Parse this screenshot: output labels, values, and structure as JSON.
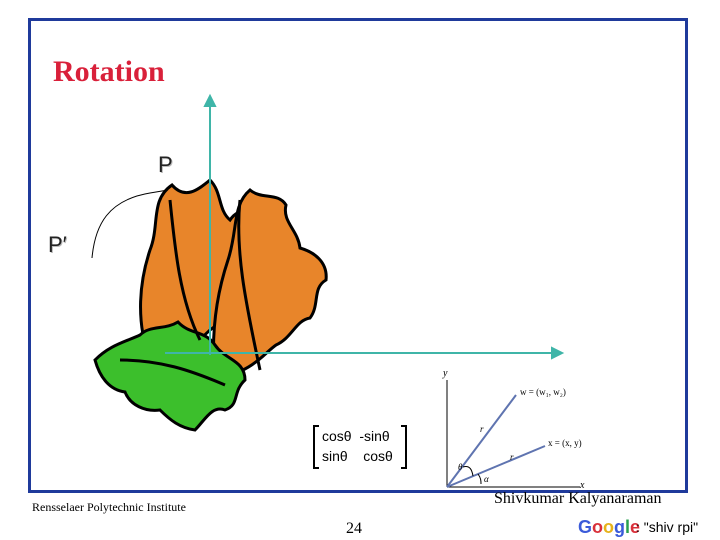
{
  "slide": {
    "title": "Rotation",
    "point_p": "P",
    "point_p_prime": "P′",
    "matrix": {
      "row1": "cosθ  -sinθ",
      "row2": "sinθ    cosθ"
    },
    "footer_left": "Rensselaer Polytechnic Institute",
    "footer_right": "Shivkumar Kalyanaraman",
    "page_number": "24",
    "google_logo": "Google",
    "google_query": ": \"shiv rpi\""
  },
  "diagram": {
    "y_axis": "y",
    "x_axis": "x",
    "w_label": "w = (w₁, w₂)",
    "x_label": "x = (x, y)",
    "r1": "r",
    "r2": "r",
    "theta": "θ",
    "alpha": "α"
  },
  "colors": {
    "frame": "#1f3a9b",
    "title": "#d9203a",
    "axes": "#3fb5a8",
    "leaf_orange": "#e8852a",
    "leaf_green": "#3cbf2c",
    "vector": "#5f74b0"
  }
}
